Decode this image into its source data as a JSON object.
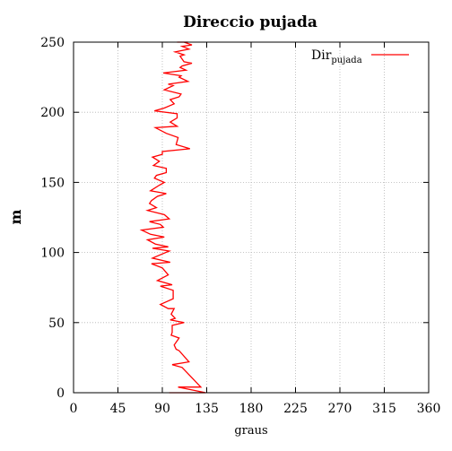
{
  "chart_data": {
    "type": "line",
    "title": "Direccio pujada",
    "xlabel": "graus",
    "ylabel": "m",
    "xlim": [
      0,
      360
    ],
    "ylim": [
      0,
      250
    ],
    "xticks": [
      "0",
      "45",
      "90",
      "135",
      "180",
      "225",
      "270",
      "315",
      "360"
    ],
    "yticks": [
      "0",
      "50",
      "100",
      "150",
      "200",
      "250"
    ],
    "grid": true,
    "legend_position": "top-right",
    "series": [
      {
        "name": "Dir",
        "name_subscript": "pujada",
        "color": "#ff0000",
        "x": [
          97,
          134,
          106,
          129,
          121,
          110,
          100,
          117,
          107,
          104,
          102,
          107,
          99,
          100,
          100,
          112,
          98,
          103,
          99,
          102,
          96,
          88,
          101,
          101,
          88,
          100,
          85,
          96,
          90,
          79,
          98,
          80,
          90,
          97,
          80,
          96,
          83,
          75,
          92,
          78,
          69,
          91,
          88,
          77,
          97,
          92,
          75,
          84,
          77,
          79,
          85,
          94,
          78,
          87,
          92,
          82,
          84,
          94,
          94,
          81,
          87,
          80,
          90,
          90,
          118,
          104,
          106,
          94,
          83,
          105,
          98,
          105,
          105,
          82,
          92,
          102,
          98,
          107,
          109,
          92,
          101,
          96,
          116,
          107,
          109,
          91,
          114,
          108,
          110,
          120,
          112,
          110,
          108,
          112,
          103,
          117,
          110,
          120,
          112,
          116,
          111,
          114,
          116,
          105
        ],
        "y": [
          0,
          0,
          4,
          4,
          10,
          18,
          20,
          22,
          30,
          31,
          34,
          39,
          41,
          43,
          48,
          50,
          52,
          53,
          56,
          60,
          60,
          63,
          67,
          73,
          76,
          77,
          80,
          84,
          89,
          92,
          93,
          96,
          99,
          101,
          103,
          104,
          106,
          109,
          111,
          113,
          116,
          118,
          120,
          122,
          124,
          127,
          130,
          132,
          135,
          137,
          140,
          142,
          144,
          148,
          150,
          153,
          155,
          157,
          160,
          162,
          165,
          168,
          170,
          172,
          174,
          177,
          182,
          185,
          189,
          190,
          193,
          196,
          199,
          201,
          203,
          206,
          209,
          211,
          213,
          216,
          219,
          220,
          222,
          225,
          226,
          228,
          230,
          232,
          233,
          235,
          236,
          238,
          240,
          241,
          243,
          245,
          247,
          248,
          250,
          250,
          250,
          250,
          250,
          250
        ]
      }
    ]
  }
}
